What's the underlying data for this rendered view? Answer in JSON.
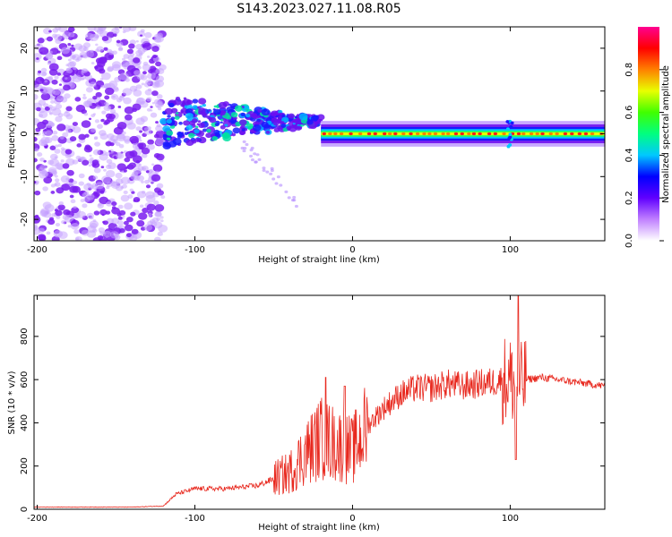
{
  "title": "S143.2023.027.11.08.R05",
  "chart_data": [
    {
      "type": "heatmap",
      "xlabel": "Height of straight line (km)",
      "ylabel": "Frequency (Hz)",
      "xlim": [
        -202,
        160
      ],
      "ylim": [
        -25,
        25
      ],
      "xticks": [
        -200,
        -100,
        0,
        100
      ],
      "yticks": [
        -20,
        -10,
        0,
        10,
        20
      ],
      "colorbar": {
        "label": "Normalized spectral amplitude",
        "range": [
          0,
          1
        ],
        "ticks": [
          "0.0",
          "0.2",
          "0.4",
          "0.6",
          "0.8"
        ],
        "tick_values": [
          0,
          0.2,
          0.4,
          0.6,
          0.8
        ],
        "colors": [
          "#ffffff",
          "#c080ff",
          "#6000ff",
          "#0000ff",
          "#00c8ff",
          "#00ff80",
          "#40ff00",
          "#e8ff00",
          "#ff8000",
          "#ff0000",
          "#ff0090"
        ]
      },
      "regions": [
        {
          "x_range": [
            -202,
            -120
          ],
          "freq_range": [
            -25,
            25
          ],
          "amplitude": 0.1
        },
        {
          "x_range": [
            -120,
            -20
          ],
          "freq_range": [
            -3,
            10
          ],
          "amplitude": 0.35
        },
        {
          "x_range": [
            -20,
            160
          ],
          "freq_range": [
            -1.5,
            1.5
          ],
          "amplitude": 0.85
        }
      ]
    },
    {
      "type": "line",
      "xlabel": "Height of straight line (km)",
      "ylabel": "SNR (10 * v/v)",
      "xlim": [
        -202,
        160
      ],
      "ylim": [
        0,
        990
      ],
      "xticks": [
        -200,
        -100,
        0,
        100
      ],
      "yticks": [
        0,
        200,
        400,
        600,
        800
      ],
      "color": "#e8281e",
      "x": [
        -202,
        -180,
        -160,
        -140,
        -120,
        -112,
        -100,
        -80,
        -60,
        -40,
        -30,
        -20,
        -10,
        0,
        10,
        20,
        30,
        40,
        50,
        60,
        70,
        80,
        90,
        95,
        100,
        105,
        110,
        120,
        130,
        140,
        150,
        160
      ],
      "y": [
        10,
        10,
        10,
        10,
        15,
        70,
        95,
        95,
        110,
        170,
        260,
        330,
        300,
        270,
        390,
        470,
        530,
        560,
        560,
        580,
        570,
        580,
        590,
        600,
        600,
        560,
        600,
        610,
        600,
        590,
        580,
        570
      ]
    }
  ]
}
